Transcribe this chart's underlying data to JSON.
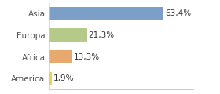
{
  "categories": [
    "America",
    "Africa",
    "Europa",
    "Asia"
  ],
  "values": [
    1.9,
    13.3,
    21.3,
    63.4
  ],
  "labels": [
    "1,9%",
    "13,3%",
    "21,3%",
    "63,4%"
  ],
  "bar_colors": [
    "#e8d44d",
    "#e8a96e",
    "#b5c989",
    "#7b9fc7"
  ],
  "background_color": "#ffffff",
  "plot_bg_color": "#ffffff",
  "xlim": [
    0,
    80
  ],
  "bar_height": 0.62,
  "label_fontsize": 7.5,
  "tick_fontsize": 7.5,
  "spine_color": "#cccccc",
  "tick_color": "#555555"
}
